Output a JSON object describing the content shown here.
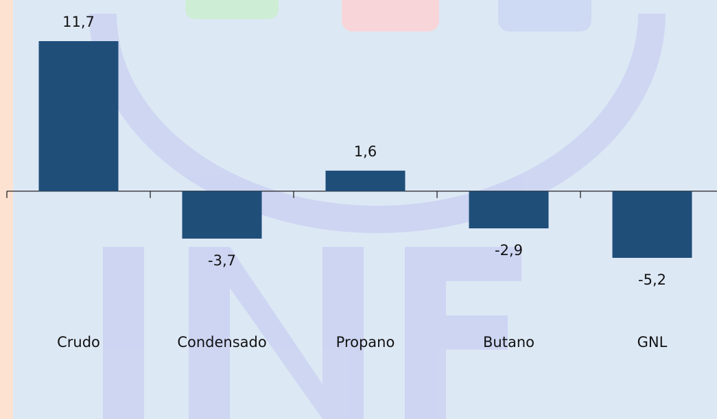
{
  "chart_data": {
    "type": "bar",
    "categories": [
      "Crudo",
      "Condensado",
      "Propano",
      "Butano",
      "GNL"
    ],
    "values": [
      11.7,
      -3.7,
      1.6,
      -2.9,
      -5.2
    ],
    "value_labels": [
      "11,7",
      "-3,7",
      "1,6",
      "-2,9",
      "-5,2"
    ],
    "color": "#1f4e79"
  }
}
